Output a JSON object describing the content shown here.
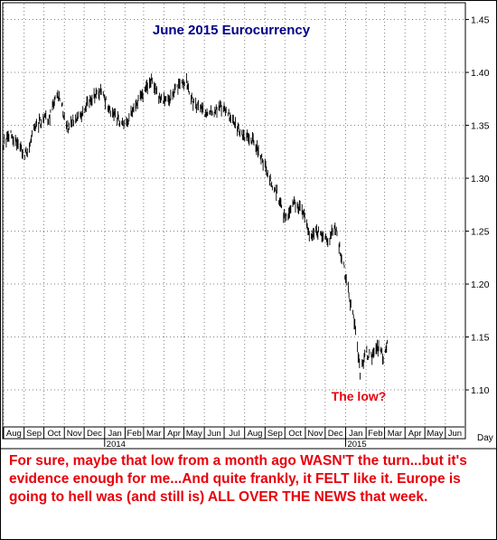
{
  "chart_data": {
    "type": "ohlc",
    "title": "June 2015 Eurocurrency",
    "annotation": "The low?",
    "xlabel": "Day",
    "ylabel": "",
    "ylim": [
      1.065,
      1.465
    ],
    "y_ticks": [
      1.1,
      1.15,
      1.2,
      1.25,
      1.3,
      1.35,
      1.4,
      1.45
    ],
    "x_range": [
      "2013-08-01",
      "2015-06-30"
    ],
    "months": [
      {
        "label": "Aug",
        "start": "2013-08-01"
      },
      {
        "label": "Sep",
        "start": "2013-09-01"
      },
      {
        "label": "Oct",
        "start": "2013-10-01"
      },
      {
        "label": "Nov",
        "start": "2013-11-01"
      },
      {
        "label": "Dec",
        "start": "2013-12-01"
      },
      {
        "label": "Jan",
        "start": "2014-01-01"
      },
      {
        "label": "Feb",
        "start": "2014-02-01"
      },
      {
        "label": "Mar",
        "start": "2014-03-01"
      },
      {
        "label": "Apr",
        "start": "2014-04-01"
      },
      {
        "label": "May",
        "start": "2014-05-01"
      },
      {
        "label": "Jun",
        "start": "2014-06-01"
      },
      {
        "label": "Jul",
        "start": "2014-07-01"
      },
      {
        "label": "Aug",
        "start": "2014-08-01"
      },
      {
        "label": "Sep",
        "start": "2014-09-01"
      },
      {
        "label": "Oct",
        "start": "2014-10-01"
      },
      {
        "label": "Nov",
        "start": "2014-11-01"
      },
      {
        "label": "Dec",
        "start": "2014-12-01"
      },
      {
        "label": "Jan",
        "start": "2015-01-01"
      },
      {
        "label": "Feb",
        "start": "2015-02-01"
      },
      {
        "label": "Mar",
        "start": "2015-03-01"
      },
      {
        "label": "Apr",
        "start": "2015-04-01"
      },
      {
        "label": "May",
        "start": "2015-05-01"
      },
      {
        "label": "Jun",
        "start": "2015-06-01"
      }
    ],
    "years": [
      {
        "label": "2014",
        "start": "2014-01-01"
      },
      {
        "label": "2015",
        "start": "2015-01-01"
      }
    ],
    "grid": true,
    "price_path": [
      [
        "2013-08-01",
        1.333
      ],
      [
        "2013-08-10",
        1.342
      ],
      [
        "2013-08-20",
        1.336
      ],
      [
        "2013-09-01",
        1.322
      ],
      [
        "2013-09-08",
        1.33
      ],
      [
        "2013-09-18",
        1.35
      ],
      [
        "2013-10-01",
        1.355
      ],
      [
        "2013-10-10",
        1.358
      ],
      [
        "2013-10-18",
        1.377
      ],
      [
        "2013-10-25",
        1.378
      ],
      [
        "2013-11-05",
        1.347
      ],
      [
        "2013-11-15",
        1.355
      ],
      [
        "2013-11-28",
        1.362
      ],
      [
        "2013-12-10",
        1.375
      ],
      [
        "2013-12-27",
        1.382
      ],
      [
        "2014-01-10",
        1.363
      ],
      [
        "2014-01-20",
        1.356
      ],
      [
        "2014-02-03",
        1.35
      ],
      [
        "2014-02-15",
        1.37
      ],
      [
        "2014-03-01",
        1.378
      ],
      [
        "2014-03-13",
        1.393
      ],
      [
        "2014-03-25",
        1.376
      ],
      [
        "2014-04-05",
        1.372
      ],
      [
        "2014-04-20",
        1.385
      ],
      [
        "2014-05-05",
        1.391
      ],
      [
        "2014-05-15",
        1.371
      ],
      [
        "2014-06-05",
        1.36
      ],
      [
        "2014-06-20",
        1.365
      ],
      [
        "2014-07-01",
        1.368
      ],
      [
        "2014-07-15",
        1.352
      ],
      [
        "2014-08-01",
        1.34
      ],
      [
        "2014-08-15",
        1.335
      ],
      [
        "2014-09-01",
        1.312
      ],
      [
        "2014-09-10",
        1.295
      ],
      [
        "2014-09-20",
        1.285
      ],
      [
        "2014-10-01",
        1.262
      ],
      [
        "2014-10-15",
        1.275
      ],
      [
        "2014-10-28",
        1.268
      ],
      [
        "2014-11-07",
        1.245
      ],
      [
        "2014-11-20",
        1.25
      ],
      [
        "2014-12-05",
        1.24
      ],
      [
        "2014-12-16",
        1.255
      ],
      [
        "2014-12-31",
        1.21
      ],
      [
        "2015-01-09",
        1.18
      ],
      [
        "2015-01-16",
        1.16
      ],
      [
        "2015-01-23",
        1.115
      ],
      [
        "2015-02-01",
        1.135
      ],
      [
        "2015-02-10",
        1.132
      ],
      [
        "2015-02-20",
        1.14
      ],
      [
        "2015-02-28",
        1.13
      ],
      [
        "2015-03-05",
        1.142
      ]
    ]
  },
  "caption": "For sure, maybe that low from a month ago WASN'T the turn...but it's evidence enough for me...And quite frankly, it FELT like it. Europe is going to hell was (and still is) ALL OVER THE NEWS that week.",
  "colors": {
    "title": "#00008b",
    "annotation": "#e8000b",
    "caption": "#e8000b",
    "price_bars": "#000000",
    "grid": "#808080"
  }
}
